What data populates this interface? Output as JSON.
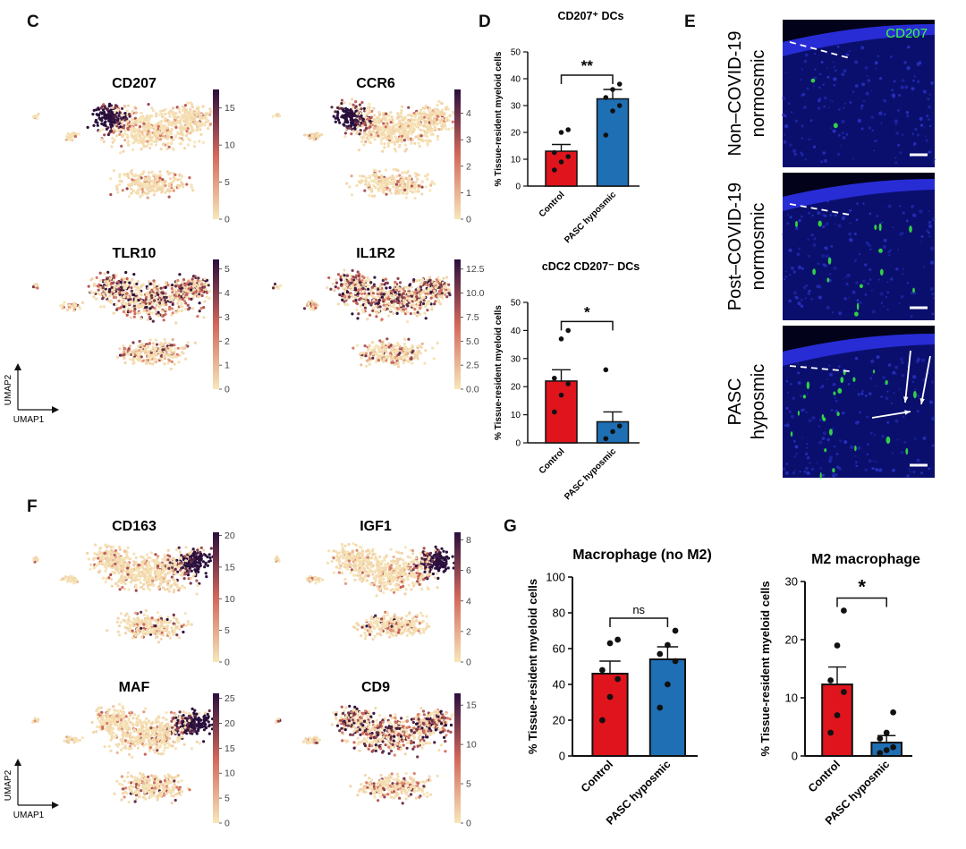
{
  "panels": {
    "C": "C",
    "D": "D",
    "E": "E",
    "F": "F",
    "G": "G"
  },
  "umap_axes": {
    "y": "UMAP2",
    "x": "UMAP1"
  },
  "colors": {
    "scale_low": "#f7e7b9",
    "scale_mid": "#d2675a",
    "scale_high": "#2a0f3d",
    "control": "#e0141d",
    "pasc": "#1f6fb5",
    "micro_bg": "#0a0f6e",
    "micro_epi": "#2b30e0",
    "cd207": "#3cff3c"
  },
  "umaps": [
    {
      "gene": "CD207",
      "ticks": [
        "15",
        "10",
        "5",
        "0"
      ],
      "tick_vals": [
        15,
        10,
        5,
        0
      ],
      "max": 17.5,
      "hotspot": "left"
    },
    {
      "gene": "CCR6",
      "ticks": [
        "4",
        "3",
        "2",
        "1",
        "0"
      ],
      "tick_vals": [
        4,
        3,
        2,
        1,
        0
      ],
      "max": 4.9,
      "hotspot": "left"
    },
    {
      "gene": "TLR10",
      "ticks": [
        "5",
        "4",
        "3",
        "2",
        "1",
        "0"
      ],
      "tick_vals": [
        5,
        4,
        3,
        2,
        1,
        0
      ],
      "max": 5.4,
      "hotspot": "broad"
    },
    {
      "gene": "IL1R2",
      "ticks": [
        "12.5",
        "10.0",
        "7.5",
        "5.0",
        "2.5",
        "0.0"
      ],
      "tick_vals": [
        12.5,
        10,
        7.5,
        5,
        2.5,
        0
      ],
      "max": 13.5,
      "hotspot": "broad"
    },
    {
      "gene": "CD163",
      "ticks": [
        "20",
        "15",
        "10",
        "5",
        "0"
      ],
      "tick_vals": [
        20,
        15,
        10,
        5,
        0
      ],
      "max": 20.5,
      "hotspot": "right"
    },
    {
      "gene": "IGF1",
      "ticks": [
        "8",
        "6",
        "4",
        "2",
        "0"
      ],
      "tick_vals": [
        8,
        6,
        4,
        2,
        0
      ],
      "max": 8.5,
      "hotspot": "right"
    },
    {
      "gene": "MAF",
      "ticks": [
        "25",
        "20",
        "15",
        "10",
        "5",
        "0"
      ],
      "tick_vals": [
        25,
        20,
        15,
        10,
        5,
        0
      ],
      "max": 26,
      "hotspot": "right"
    },
    {
      "gene": "CD9",
      "ticks": [
        "15",
        "10",
        "5",
        "0"
      ],
      "tick_vals": [
        15,
        10,
        5,
        0
      ],
      "max": 16.5,
      "hotspot": "broad"
    }
  ],
  "chart_data": [
    {
      "type": "bar",
      "title": "CD207⁺ DCs",
      "ylabel": "% Tissue-resident myeloid cells",
      "categories": [
        "Control",
        "PASC hyposmic"
      ],
      "values": [
        13,
        32.5
      ],
      "errors": [
        2.5,
        3.5
      ],
      "points": [
        [
          6,
          9,
          11,
          12.5,
          20,
          21
        ],
        [
          19,
          28,
          30,
          33,
          36,
          38
        ]
      ],
      "ylim": [
        0,
        50
      ],
      "yticks": [
        0,
        10,
        20,
        30,
        40,
        50
      ],
      "significance": "**"
    },
    {
      "type": "bar",
      "title": "cDC2 CD207⁻ DCs",
      "ylabel": "% Tissue-resident myeloid cells",
      "categories": [
        "Control",
        "PASC hyposmic"
      ],
      "values": [
        22,
        7.5
      ],
      "errors": [
        4,
        3.5
      ],
      "points": [
        [
          11,
          17,
          21,
          23,
          37,
          40
        ],
        [
          1.5,
          4,
          6,
          26
        ]
      ],
      "ylim": [
        0,
        50
      ],
      "yticks": [
        0,
        10,
        20,
        30,
        40,
        50
      ],
      "significance": "*"
    },
    {
      "type": "bar",
      "title": "Macrophage (no M2)",
      "ylabel": "% Tissue-resident myeloid cells",
      "categories": [
        "Control",
        "PASC hyposmic"
      ],
      "values": [
        46,
        54
      ],
      "errors": [
        7,
        7
      ],
      "points": [
        [
          20,
          33,
          43,
          48,
          63,
          65
        ],
        [
          27,
          40,
          53,
          57,
          62,
          70
        ]
      ],
      "ylim": [
        0,
        100
      ],
      "yticks": [
        0,
        20,
        40,
        60,
        80,
        100
      ],
      "significance": "ns"
    },
    {
      "type": "bar",
      "title": "M2 macrophage",
      "ylabel": "% Tissue-resident myeloid cells",
      "categories": [
        "Control",
        "PASC hyposmic"
      ],
      "values": [
        12.3,
        2.3
      ],
      "errors": [
        3,
        1.2
      ],
      "points": [
        [
          4,
          7,
          11,
          13,
          19,
          25
        ],
        [
          0.5,
          1,
          1.5,
          3,
          4,
          7.5
        ]
      ],
      "ylim": [
        0,
        30
      ],
      "yticks": [
        0,
        10,
        20,
        30
      ],
      "significance": "*"
    }
  ],
  "micro": {
    "marker": "CD207",
    "rows": [
      {
        "line1": "Non–COVID-19",
        "line2": "normosmic"
      },
      {
        "line1": "Post–COVID-19",
        "line2": "normosmic"
      },
      {
        "line1": "PASC",
        "line2": "hyposmic"
      }
    ]
  }
}
